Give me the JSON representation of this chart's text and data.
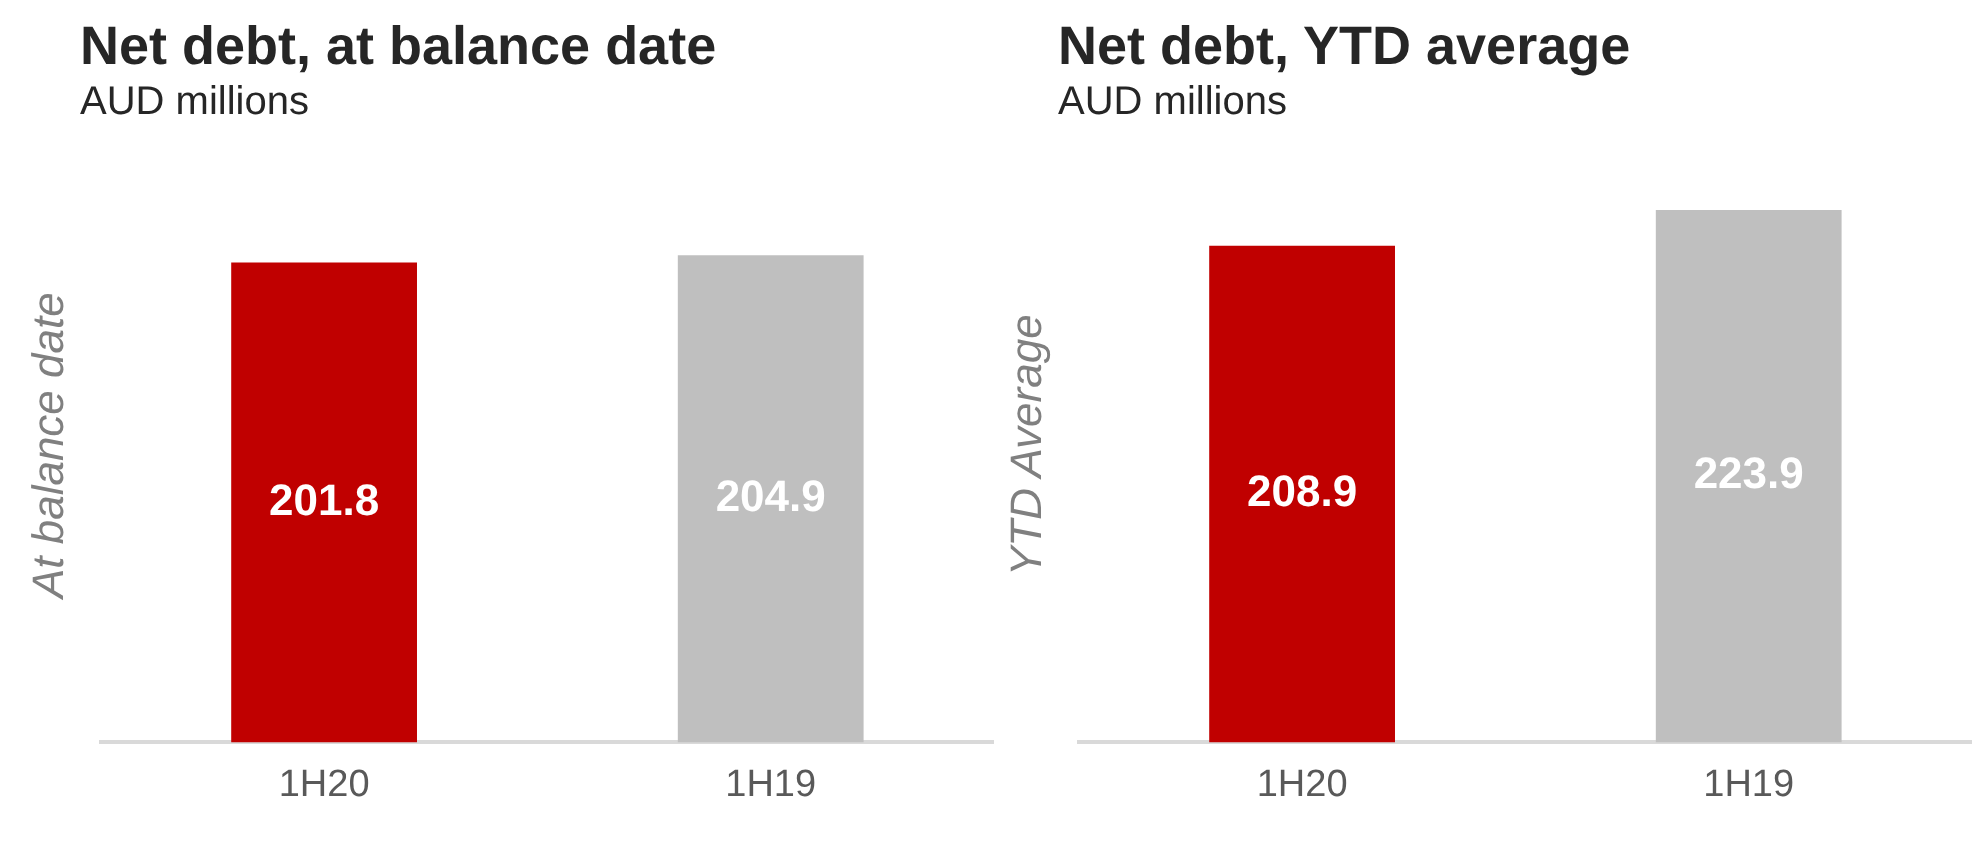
{
  "chart_data": [
    {
      "type": "bar",
      "title": "Net debt, at balance date",
      "subtitle": "AUD millions",
      "ylabel": "At balance date",
      "categories": [
        "1H20",
        "1H19"
      ],
      "values": [
        201.8,
        204.9
      ],
      "colors": [
        "#c00000",
        "#bfbfbf"
      ],
      "data_labels": true
    },
    {
      "type": "bar",
      "title": "Net debt, YTD average",
      "subtitle": "AUD millions",
      "ylabel": "YTD Average",
      "categories": [
        "1H20",
        "1H19"
      ],
      "values": [
        208.9,
        223.9
      ],
      "colors": [
        "#c00000",
        "#bfbfbf"
      ],
      "data_labels": true
    }
  ]
}
